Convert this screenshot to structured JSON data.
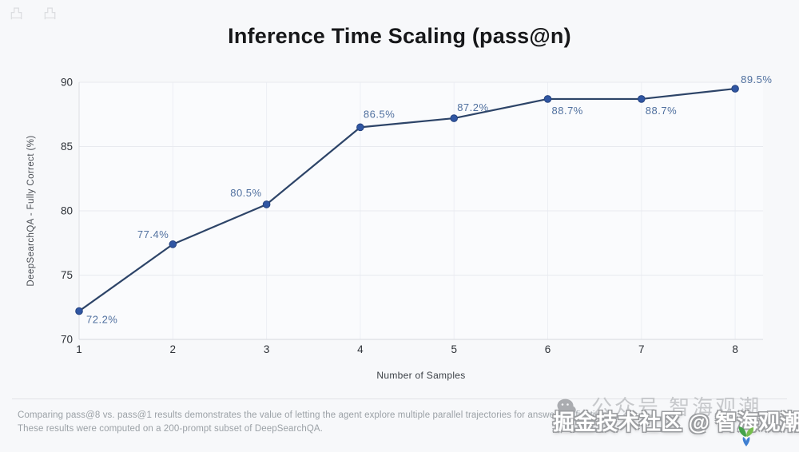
{
  "title": "Inference Time Scaling (pass@n)",
  "chart_data": {
    "type": "line",
    "x": [
      1,
      2,
      3,
      4,
      5,
      6,
      7,
      8
    ],
    "values": [
      72.2,
      77.4,
      80.5,
      86.5,
      87.2,
      88.7,
      88.7,
      89.5
    ],
    "point_labels": [
      "72.2%",
      "77.4%",
      "80.5%",
      "86.5%",
      "87.2%",
      "88.7%",
      "88.7%",
      "89.5%"
    ],
    "xticks": [
      1,
      2,
      3,
      4,
      5,
      6,
      7,
      8
    ],
    "yticks": [
      70,
      75,
      80,
      85,
      90
    ],
    "ylim": [
      70,
      90
    ],
    "xlabel": "Number of Samples",
    "ylabel": "DeepSearchQA - Fully Correct (%)",
    "grid": true,
    "legend": "none",
    "line_color": "#2d4468",
    "point_color": "#3056a3",
    "point_stroke_color": "#24427f",
    "point_label_color": "#50709f",
    "tick_label_color": "#2e3238",
    "grid_color_horizontal": "#e8eaef",
    "grid_color_vertical": "#edeff4",
    "axis_line_color": "#d7d9de",
    "plot_bg_color": "#fafbfd"
  },
  "caption": {
    "line1": "Comparing pass@8 vs. pass@1 results demonstrates the value of letting the agent explore multiple parallel trajectories for answer verification.",
    "line2": "These results were computed on a 200-prompt subset of DeepSearchQA."
  },
  "watermark": {
    "gray_label": "公众号  智海观潮",
    "main_label": "掘金技术社区 @ 智海观潮",
    "wechat_icon": "wechat-chat-bubble-icon",
    "logo_icon": "sprout-logo-icon"
  },
  "artifacts": {
    "glyph1": "凸",
    "glyph2": "凸"
  },
  "page": {
    "background_color": "#f7f8fa"
  }
}
